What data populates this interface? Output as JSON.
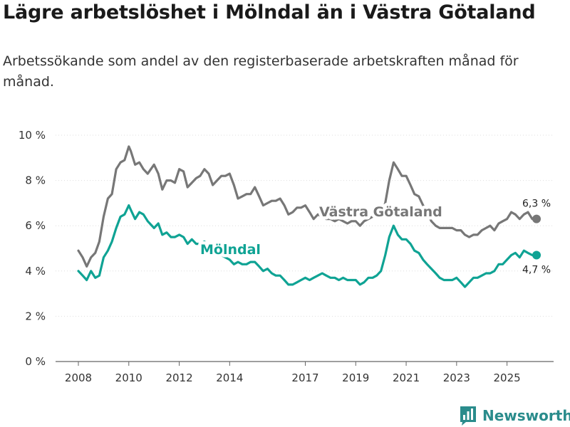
{
  "header": {
    "title": "Lägre arbetslöshet i Mölndal än i Västra Götaland",
    "subtitle": "Arbetssökande som andel av den registerbaserade arbetskraften månad för månad."
  },
  "brand": {
    "name": "Newsworthy",
    "icon": "newsworthy-logo-icon"
  },
  "colors": {
    "region": "#777777",
    "municipality": "#0fa394",
    "grid": "#dddddd",
    "axis": "#666666"
  },
  "chart_data": {
    "type": "line",
    "title": "Lägre arbetslöshet i Mölndal än i Västra Götaland",
    "xlabel": "",
    "ylabel": "",
    "ylim": [
      0,
      10
    ],
    "xlim": [
      2008,
      2026.6
    ],
    "y_ticks": [
      0,
      2,
      4,
      6,
      8,
      10
    ],
    "y_tick_labels": [
      "0 %",
      "2 %",
      "4 %",
      "6 %",
      "8 %",
      "10 %"
    ],
    "x_ticks": [
      2008,
      2010,
      2012,
      2014,
      2017,
      2019,
      2021,
      2023,
      2025
    ],
    "x_tick_labels": [
      "2008",
      "2010",
      "2012",
      "2014",
      "2017",
      "2019",
      "2021",
      "2023",
      "2025"
    ],
    "grid": true,
    "series": [
      {
        "name": "Västra Götaland",
        "color": "#777777",
        "end_label": "6,3 %",
        "x": [
          2008.0,
          2008.17,
          2008.33,
          2008.5,
          2008.67,
          2008.83,
          2009.0,
          2009.17,
          2009.33,
          2009.5,
          2009.67,
          2009.83,
          2010.0,
          2010.08,
          2010.25,
          2010.42,
          2010.58,
          2010.75,
          2011.0,
          2011.17,
          2011.33,
          2011.5,
          2011.67,
          2011.83,
          2012.0,
          2012.17,
          2012.33,
          2012.5,
          2012.67,
          2012.83,
          2013.0,
          2013.17,
          2013.33,
          2013.5,
          2013.67,
          2013.83,
          2014.0,
          2014.17,
          2014.33,
          2014.5,
          2014.67,
          2014.83,
          2015.0,
          2015.17,
          2015.33,
          2015.5,
          2015.67,
          2015.83,
          2016.0,
          2016.17,
          2016.33,
          2016.5,
          2016.67,
          2016.83,
          2017.0,
          2017.17,
          2017.33,
          2017.5,
          2017.67,
          2017.83,
          2018.0,
          2018.17,
          2018.33,
          2018.5,
          2018.67,
          2018.83,
          2019.0,
          2019.17,
          2019.33,
          2019.5,
          2019.67,
          2019.83,
          2020.0,
          2020.17,
          2020.33,
          2020.5,
          2020.67,
          2020.83,
          2021.0,
          2021.17,
          2021.33,
          2021.5,
          2021.67,
          2021.83,
          2022.0,
          2022.17,
          2022.33,
          2022.5,
          2022.67,
          2022.83,
          2023.0,
          2023.17,
          2023.33,
          2023.5,
          2023.67,
          2023.83,
          2024.0,
          2024.17,
          2024.33,
          2024.5,
          2024.67,
          2024.83,
          2025.0,
          2025.17,
          2025.33,
          2025.5,
          2025.67,
          2025.83,
          2026.0,
          2026.17
        ],
        "values": [
          4.9,
          4.6,
          4.2,
          4.6,
          4.8,
          5.3,
          6.4,
          7.2,
          7.4,
          8.5,
          8.8,
          8.9,
          9.5,
          9.3,
          8.7,
          8.8,
          8.5,
          8.3,
          8.7,
          8.3,
          7.6,
          8.0,
          8.0,
          7.9,
          8.5,
          8.4,
          7.7,
          7.9,
          8.1,
          8.2,
          8.5,
          8.3,
          7.8,
          8.0,
          8.2,
          8.2,
          8.3,
          7.8,
          7.2,
          7.3,
          7.4,
          7.4,
          7.7,
          7.3,
          6.9,
          7.0,
          7.1,
          7.1,
          7.2,
          6.9,
          6.5,
          6.6,
          6.8,
          6.8,
          6.9,
          6.6,
          6.3,
          6.5,
          6.4,
          6.3,
          6.3,
          6.2,
          6.3,
          6.2,
          6.1,
          6.2,
          6.2,
          6.0,
          6.2,
          6.3,
          6.4,
          6.5,
          6.5,
          7.0,
          8.0,
          8.8,
          8.5,
          8.2,
          8.2,
          7.8,
          7.4,
          7.3,
          6.9,
          6.6,
          6.2,
          6.0,
          5.9,
          5.9,
          5.9,
          5.9,
          5.8,
          5.8,
          5.6,
          5.5,
          5.6,
          5.6,
          5.8,
          5.9,
          6.0,
          5.8,
          6.1,
          6.2,
          6.3,
          6.6,
          6.5,
          6.3,
          6.5,
          6.6,
          6.3,
          6.3
        ]
      },
      {
        "name": "Mölndal",
        "color": "#0fa394",
        "end_label": "4,7 %",
        "x": [
          2008.0,
          2008.17,
          2008.33,
          2008.5,
          2008.67,
          2008.83,
          2009.0,
          2009.17,
          2009.33,
          2009.5,
          2009.67,
          2009.83,
          2010.0,
          2010.08,
          2010.25,
          2010.42,
          2010.58,
          2010.75,
          2011.0,
          2011.17,
          2011.33,
          2011.5,
          2011.67,
          2011.83,
          2012.0,
          2012.17,
          2012.33,
          2012.5,
          2012.67,
          2012.83,
          2013.0,
          2013.17,
          2013.33,
          2013.5,
          2013.67,
          2013.83,
          2014.0,
          2014.17,
          2014.33,
          2014.5,
          2014.67,
          2014.83,
          2015.0,
          2015.17,
          2015.33,
          2015.5,
          2015.67,
          2015.83,
          2016.0,
          2016.17,
          2016.33,
          2016.5,
          2016.67,
          2016.83,
          2017.0,
          2017.17,
          2017.33,
          2017.5,
          2017.67,
          2017.83,
          2018.0,
          2018.17,
          2018.33,
          2018.5,
          2018.67,
          2018.83,
          2019.0,
          2019.17,
          2019.33,
          2019.5,
          2019.67,
          2019.83,
          2020.0,
          2020.17,
          2020.33,
          2020.5,
          2020.67,
          2020.83,
          2021.0,
          2021.17,
          2021.33,
          2021.5,
          2021.67,
          2021.83,
          2022.0,
          2022.17,
          2022.33,
          2022.5,
          2022.67,
          2022.83,
          2023.0,
          2023.17,
          2023.33,
          2023.5,
          2023.67,
          2023.83,
          2024.0,
          2024.17,
          2024.33,
          2024.5,
          2024.67,
          2024.83,
          2025.0,
          2025.17,
          2025.33,
          2025.5,
          2025.67,
          2025.83,
          2026.0,
          2026.17
        ],
        "values": [
          4.0,
          3.8,
          3.6,
          4.0,
          3.7,
          3.8,
          4.6,
          4.9,
          5.3,
          5.9,
          6.4,
          6.5,
          6.9,
          6.7,
          6.3,
          6.6,
          6.5,
          6.2,
          5.9,
          6.1,
          5.6,
          5.7,
          5.5,
          5.5,
          5.6,
          5.5,
          5.2,
          5.4,
          5.2,
          5.2,
          5.3,
          5.1,
          5.0,
          4.8,
          4.7,
          4.6,
          4.5,
          4.3,
          4.4,
          4.3,
          4.3,
          4.4,
          4.4,
          4.2,
          4.0,
          4.1,
          3.9,
          3.8,
          3.8,
          3.6,
          3.4,
          3.4,
          3.5,
          3.6,
          3.7,
          3.6,
          3.7,
          3.8,
          3.9,
          3.8,
          3.7,
          3.7,
          3.6,
          3.7,
          3.6,
          3.6,
          3.6,
          3.4,
          3.5,
          3.7,
          3.7,
          3.8,
          4.0,
          4.7,
          5.5,
          6.0,
          5.6,
          5.4,
          5.4,
          5.2,
          4.9,
          4.8,
          4.5,
          4.3,
          4.1,
          3.9,
          3.7,
          3.6,
          3.6,
          3.6,
          3.7,
          3.5,
          3.3,
          3.5,
          3.7,
          3.7,
          3.8,
          3.9,
          3.9,
          4.0,
          4.3,
          4.3,
          4.5,
          4.7,
          4.8,
          4.6,
          4.9,
          4.8,
          4.7,
          4.7
        ]
      }
    ]
  }
}
